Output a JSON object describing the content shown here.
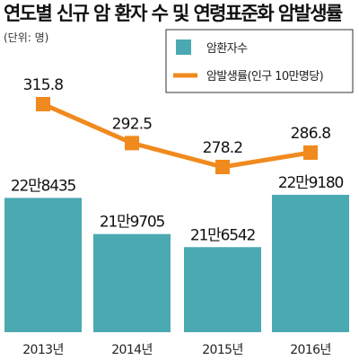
{
  "chart_data": {
    "type": "bar",
    "title": "연도별 신규 암 환자 수 및 연령표준화 암발생률",
    "unit_note": "(단위: 명)",
    "categories": [
      "2013년",
      "2014년",
      "2015년",
      "2016년"
    ],
    "series": [
      {
        "name": "암환자수",
        "type": "bar",
        "color": "#4ba9b2",
        "values": [
          228435,
          219705,
          216542,
          229180
        ],
        "labels": [
          "22만8435",
          "21만9705",
          "21만6542",
          "22만9180"
        ]
      },
      {
        "name": "암발생률(인구 10만명당)",
        "type": "line",
        "color": "#f08a1e",
        "values": [
          315.8,
          292.5,
          278.2,
          286.8
        ],
        "labels": [
          "315.8",
          "292.5",
          "278.2",
          "286.8"
        ]
      }
    ],
    "legend_position": "top-right",
    "grid": false
  }
}
